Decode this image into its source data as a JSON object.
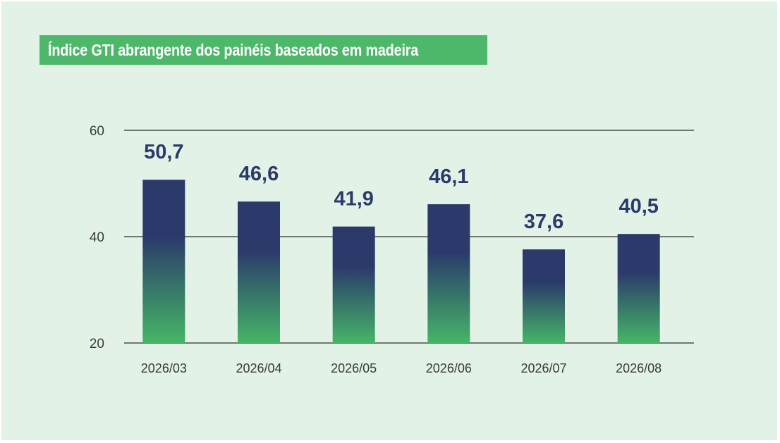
{
  "chart_data": {
    "type": "bar",
    "title": "Índice GTI abrangente dos painéis baseados em madeira",
    "categories": [
      "2026/03",
      "2026/04",
      "2026/05",
      "2026/06",
      "2026/07",
      "2026/08"
    ],
    "values": [
      50.7,
      46.6,
      41.9,
      46.1,
      37.6,
      40.5
    ],
    "value_labels": [
      "50,7",
      "46,6",
      "41,9",
      "46,1",
      "37,6",
      "40,5"
    ],
    "ylim": [
      20,
      60
    ],
    "yticks": [
      20,
      40,
      60
    ],
    "xlabel": "",
    "ylabel": "",
    "grid": true,
    "colors": {
      "bar_top": "#2b3a6b",
      "bar_bottom": "#45b567",
      "value_label": "#2b3a6b",
      "title_bg": "#4db86a",
      "background": "#e3f2e6"
    }
  }
}
